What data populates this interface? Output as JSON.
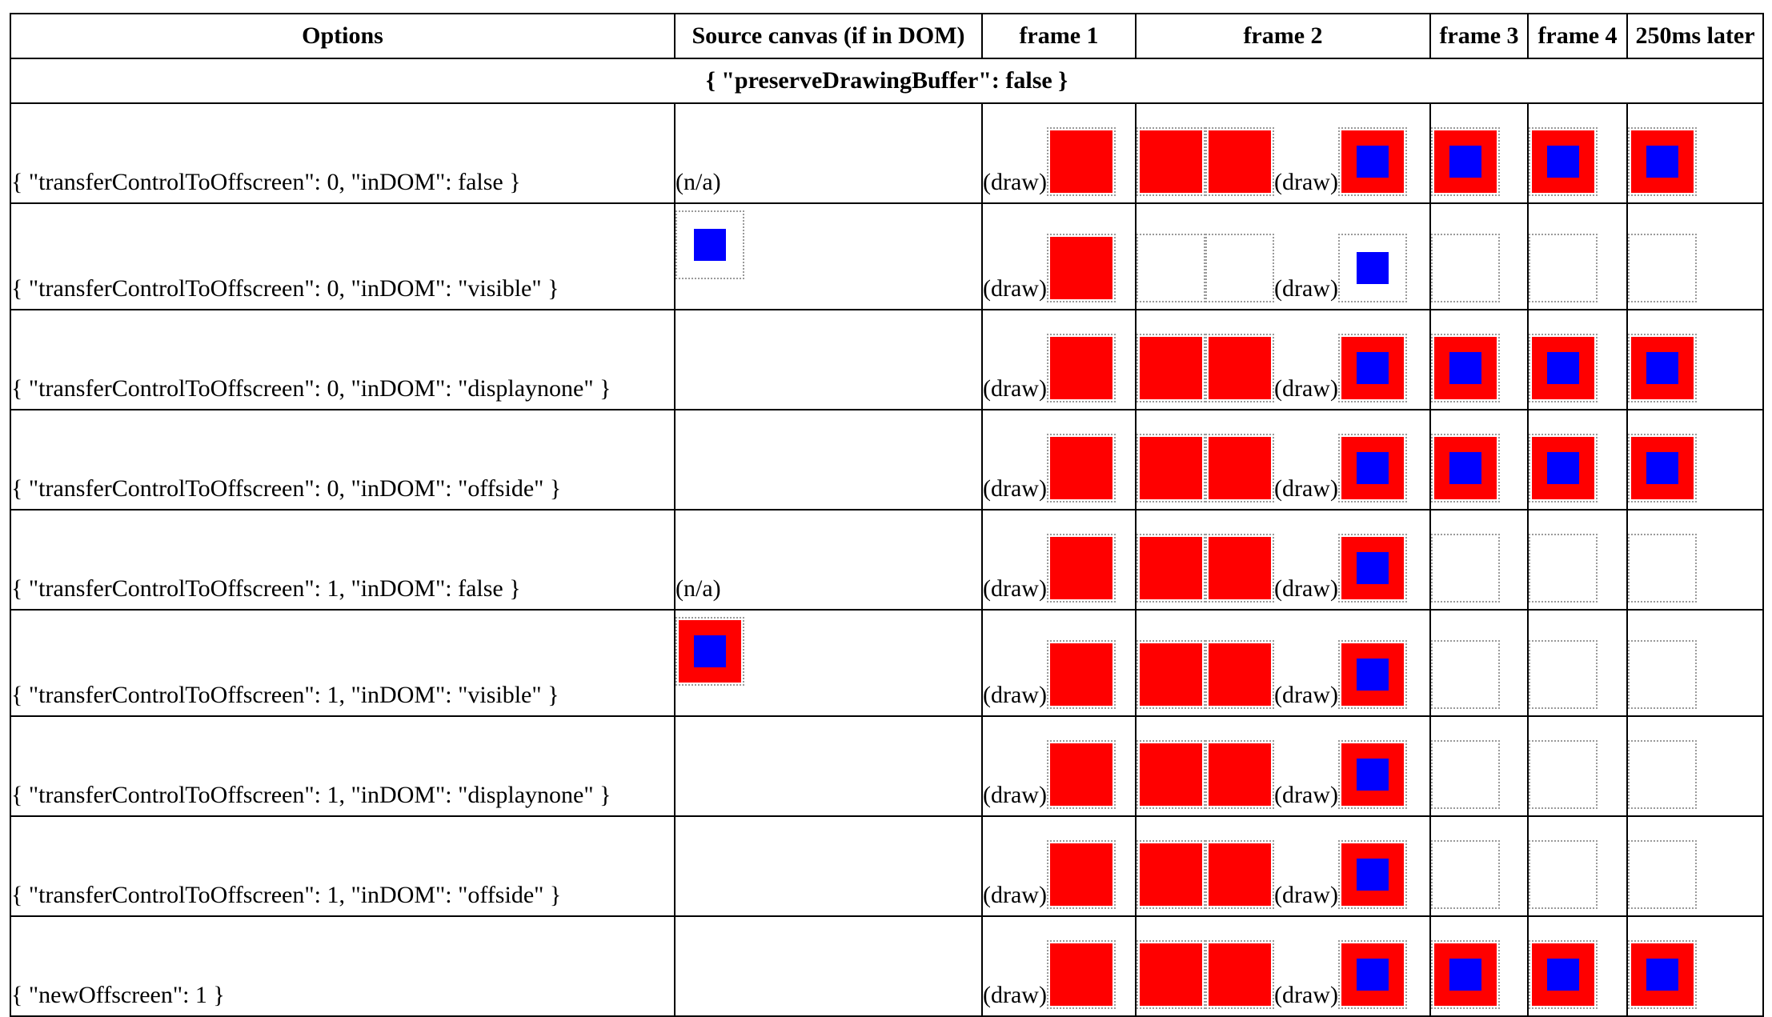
{
  "headers": [
    "Options",
    "Source canvas (if in DOM)",
    "frame 1",
    "frame 2",
    "frame 3",
    "frame 4",
    "250ms later"
  ],
  "group_label": "{ \"preserveDrawingBuffer\": false }",
  "draw_label": "(draw)",
  "state_colors": {
    "red": "#ff0000",
    "blue": "#0000ff",
    "border": "#9a9a9a"
  },
  "rows": [
    {
      "options": "{ \"transferControlToOffscreen\": 0, \"inDOM\": false }",
      "source_text": "(n/a)",
      "source_thumb": null,
      "frame1": "red",
      "frame2": [
        "red",
        "red",
        "redblue"
      ],
      "frame3": "redblue",
      "frame4": "redblue",
      "later": "redblue"
    },
    {
      "options": "{ \"transferControlToOffscreen\": 0, \"inDOM\": \"visible\" }",
      "source_text": "",
      "source_thumb": "blue",
      "frame1": "red",
      "frame2": [
        "blank",
        "blank",
        "blue"
      ],
      "frame3": "blank",
      "frame4": "blank",
      "later": "blank"
    },
    {
      "options": "{ \"transferControlToOffscreen\": 0, \"inDOM\": \"displaynone\" }",
      "source_text": "",
      "source_thumb": null,
      "frame1": "red",
      "frame2": [
        "red",
        "red",
        "redblue"
      ],
      "frame3": "redblue",
      "frame4": "redblue",
      "later": "redblue"
    },
    {
      "options": "{ \"transferControlToOffscreen\": 0, \"inDOM\": \"offside\" }",
      "source_text": "",
      "source_thumb": null,
      "frame1": "red",
      "frame2": [
        "red",
        "red",
        "redblue"
      ],
      "frame3": "redblue",
      "frame4": "redblue",
      "later": "redblue"
    },
    {
      "options": "{ \"transferControlToOffscreen\": 1, \"inDOM\": false }",
      "source_text": "(n/a)",
      "source_thumb": null,
      "frame1": "red",
      "frame2": [
        "red",
        "red",
        "redblue"
      ],
      "frame3": "blank",
      "frame4": "blank",
      "later": "blank"
    },
    {
      "options": "{ \"transferControlToOffscreen\": 1, \"inDOM\": \"visible\" }",
      "source_text": "",
      "source_thumb": "redblue",
      "frame1": "red",
      "frame2": [
        "red",
        "red",
        "redblue"
      ],
      "frame3": "blank",
      "frame4": "blank",
      "later": "blank"
    },
    {
      "options": "{ \"transferControlToOffscreen\": 1, \"inDOM\": \"displaynone\" }",
      "source_text": "",
      "source_thumb": null,
      "frame1": "red",
      "frame2": [
        "red",
        "red",
        "redblue"
      ],
      "frame3": "blank",
      "frame4": "blank",
      "later": "blank"
    },
    {
      "options": "{ \"transferControlToOffscreen\": 1, \"inDOM\": \"offside\" }",
      "source_text": "",
      "source_thumb": null,
      "frame1": "red",
      "frame2": [
        "red",
        "red",
        "redblue"
      ],
      "frame3": "blank",
      "frame4": "blank",
      "later": "blank"
    },
    {
      "options": "{ \"newOffscreen\": 1 }",
      "source_text": "",
      "source_thumb": null,
      "frame1": "red",
      "frame2": [
        "red",
        "red",
        "redblue"
      ],
      "frame3": "redblue",
      "frame4": "redblue",
      "later": "redblue"
    }
  ]
}
